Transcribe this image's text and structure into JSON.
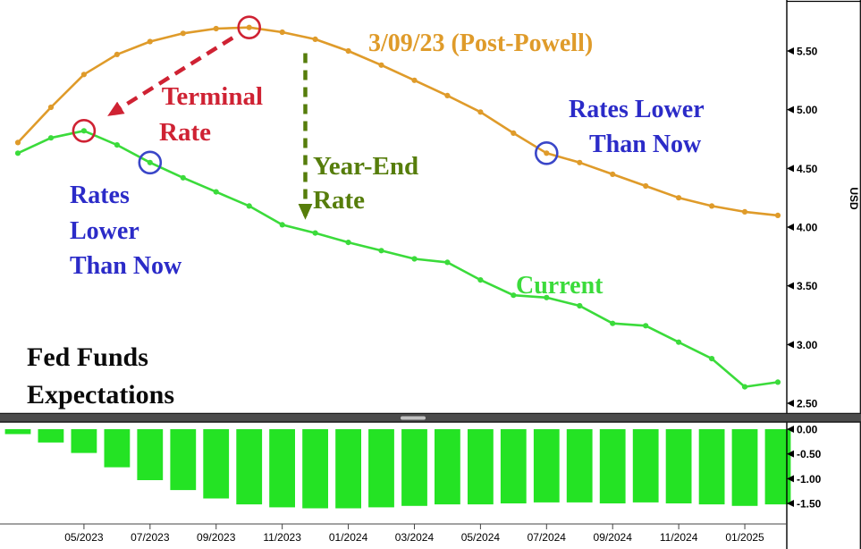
{
  "annotations": {
    "terminal_rate": [
      "Terminal",
      "Rate"
    ],
    "year_end_rate": [
      "Year-End",
      "Rate"
    ],
    "rates_lower_left": [
      "Rates",
      "Lower",
      "Than Now"
    ],
    "rates_lower_right": [
      "Rates Lower",
      "Than Now"
    ],
    "chart_title": [
      "Fed Funds",
      "Expectations"
    ]
  },
  "chart_data": {
    "type": "line+bar",
    "title": "Fed Funds Expectations",
    "x_monthly": [
      "03/2023",
      "04/2023",
      "05/2023",
      "06/2023",
      "07/2023",
      "08/2023",
      "09/2023",
      "10/2023",
      "11/2023",
      "12/2023",
      "01/2024",
      "02/2024",
      "03/2024",
      "04/2024",
      "05/2024",
      "06/2024",
      "07/2024",
      "08/2024",
      "09/2024",
      "10/2024",
      "11/2024",
      "12/2024",
      "01/2025",
      "02/2025"
    ],
    "x_axis_labels": [
      "05/2023",
      "07/2023",
      "09/2023",
      "11/2023",
      "01/2024",
      "03/2024",
      "05/2024",
      "07/2024",
      "09/2024",
      "11/2024",
      "01/2025"
    ],
    "top_panel": {
      "ylabel": "USD",
      "ytick_labels": [
        "5.50",
        "5.00",
        "4.50",
        "4.00",
        "3.50",
        "3.00",
        "2.50"
      ],
      "ylim": [
        2.45,
        5.92
      ],
      "series": [
        {
          "name": "3/09/23 (Post-Powell)",
          "color": "#DF9B2A",
          "values": [
            4.72,
            5.02,
            5.3,
            5.47,
            5.58,
            5.65,
            5.69,
            5.7,
            5.66,
            5.6,
            5.5,
            5.38,
            5.25,
            5.12,
            4.98,
            4.8,
            4.63,
            4.55,
            4.45,
            4.35,
            4.25,
            4.18,
            4.13,
            4.1
          ]
        },
        {
          "name": "Current",
          "color": "#3BDB3B",
          "values": [
            4.63,
            4.76,
            4.82,
            4.7,
            4.55,
            4.42,
            4.3,
            4.18,
            4.02,
            3.95,
            3.87,
            3.8,
            3.73,
            3.7,
            3.55,
            3.42,
            3.4,
            3.33,
            3.18,
            3.16,
            3.02,
            2.88,
            2.64,
            2.68
          ]
        }
      ]
    },
    "bottom_panel": {
      "ytick_labels": [
        "0.00",
        "-0.50",
        "-1.00",
        "-1.50"
      ],
      "ylim": [
        0.15,
        -1.85
      ],
      "spread_bars": {
        "color": "#24E324",
        "values": [
          -0.1,
          -0.27,
          -0.48,
          -0.77,
          -1.03,
          -1.23,
          -1.4,
          -1.52,
          -1.58,
          -1.6,
          -1.6,
          -1.58,
          -1.55,
          -1.52,
          -1.52,
          -1.5,
          -1.48,
          -1.48,
          -1.5,
          -1.48,
          -1.5,
          -1.52,
          -1.55,
          -1.52
        ]
      }
    },
    "markers": [
      {
        "name": "terminal-rate-circle-post-powell",
        "color": "#CF2233",
        "series": 0,
        "index": 7
      },
      {
        "name": "terminal-rate-circle-current",
        "color": "#CF2233",
        "series": 1,
        "index": 2
      },
      {
        "name": "rates-lower-circle-current",
        "color": "#3A46C8",
        "series": 1,
        "index": 4
      },
      {
        "name": "rates-lower-circle-post-powell",
        "color": "#3A46C8",
        "series": 0,
        "index": 16
      }
    ],
    "arrows": [
      {
        "name": "terminal-rate-arrow",
        "color": "#CF2233",
        "marker": "arrow-red",
        "from": {
          "series": 0,
          "index": 7
        },
        "to": {
          "series": 1,
          "index": 2
        }
      },
      {
        "name": "year-end-rate-arrow",
        "color": "#567D0B",
        "marker": "arrow-olive",
        "x_index": 8.7
      }
    ]
  }
}
